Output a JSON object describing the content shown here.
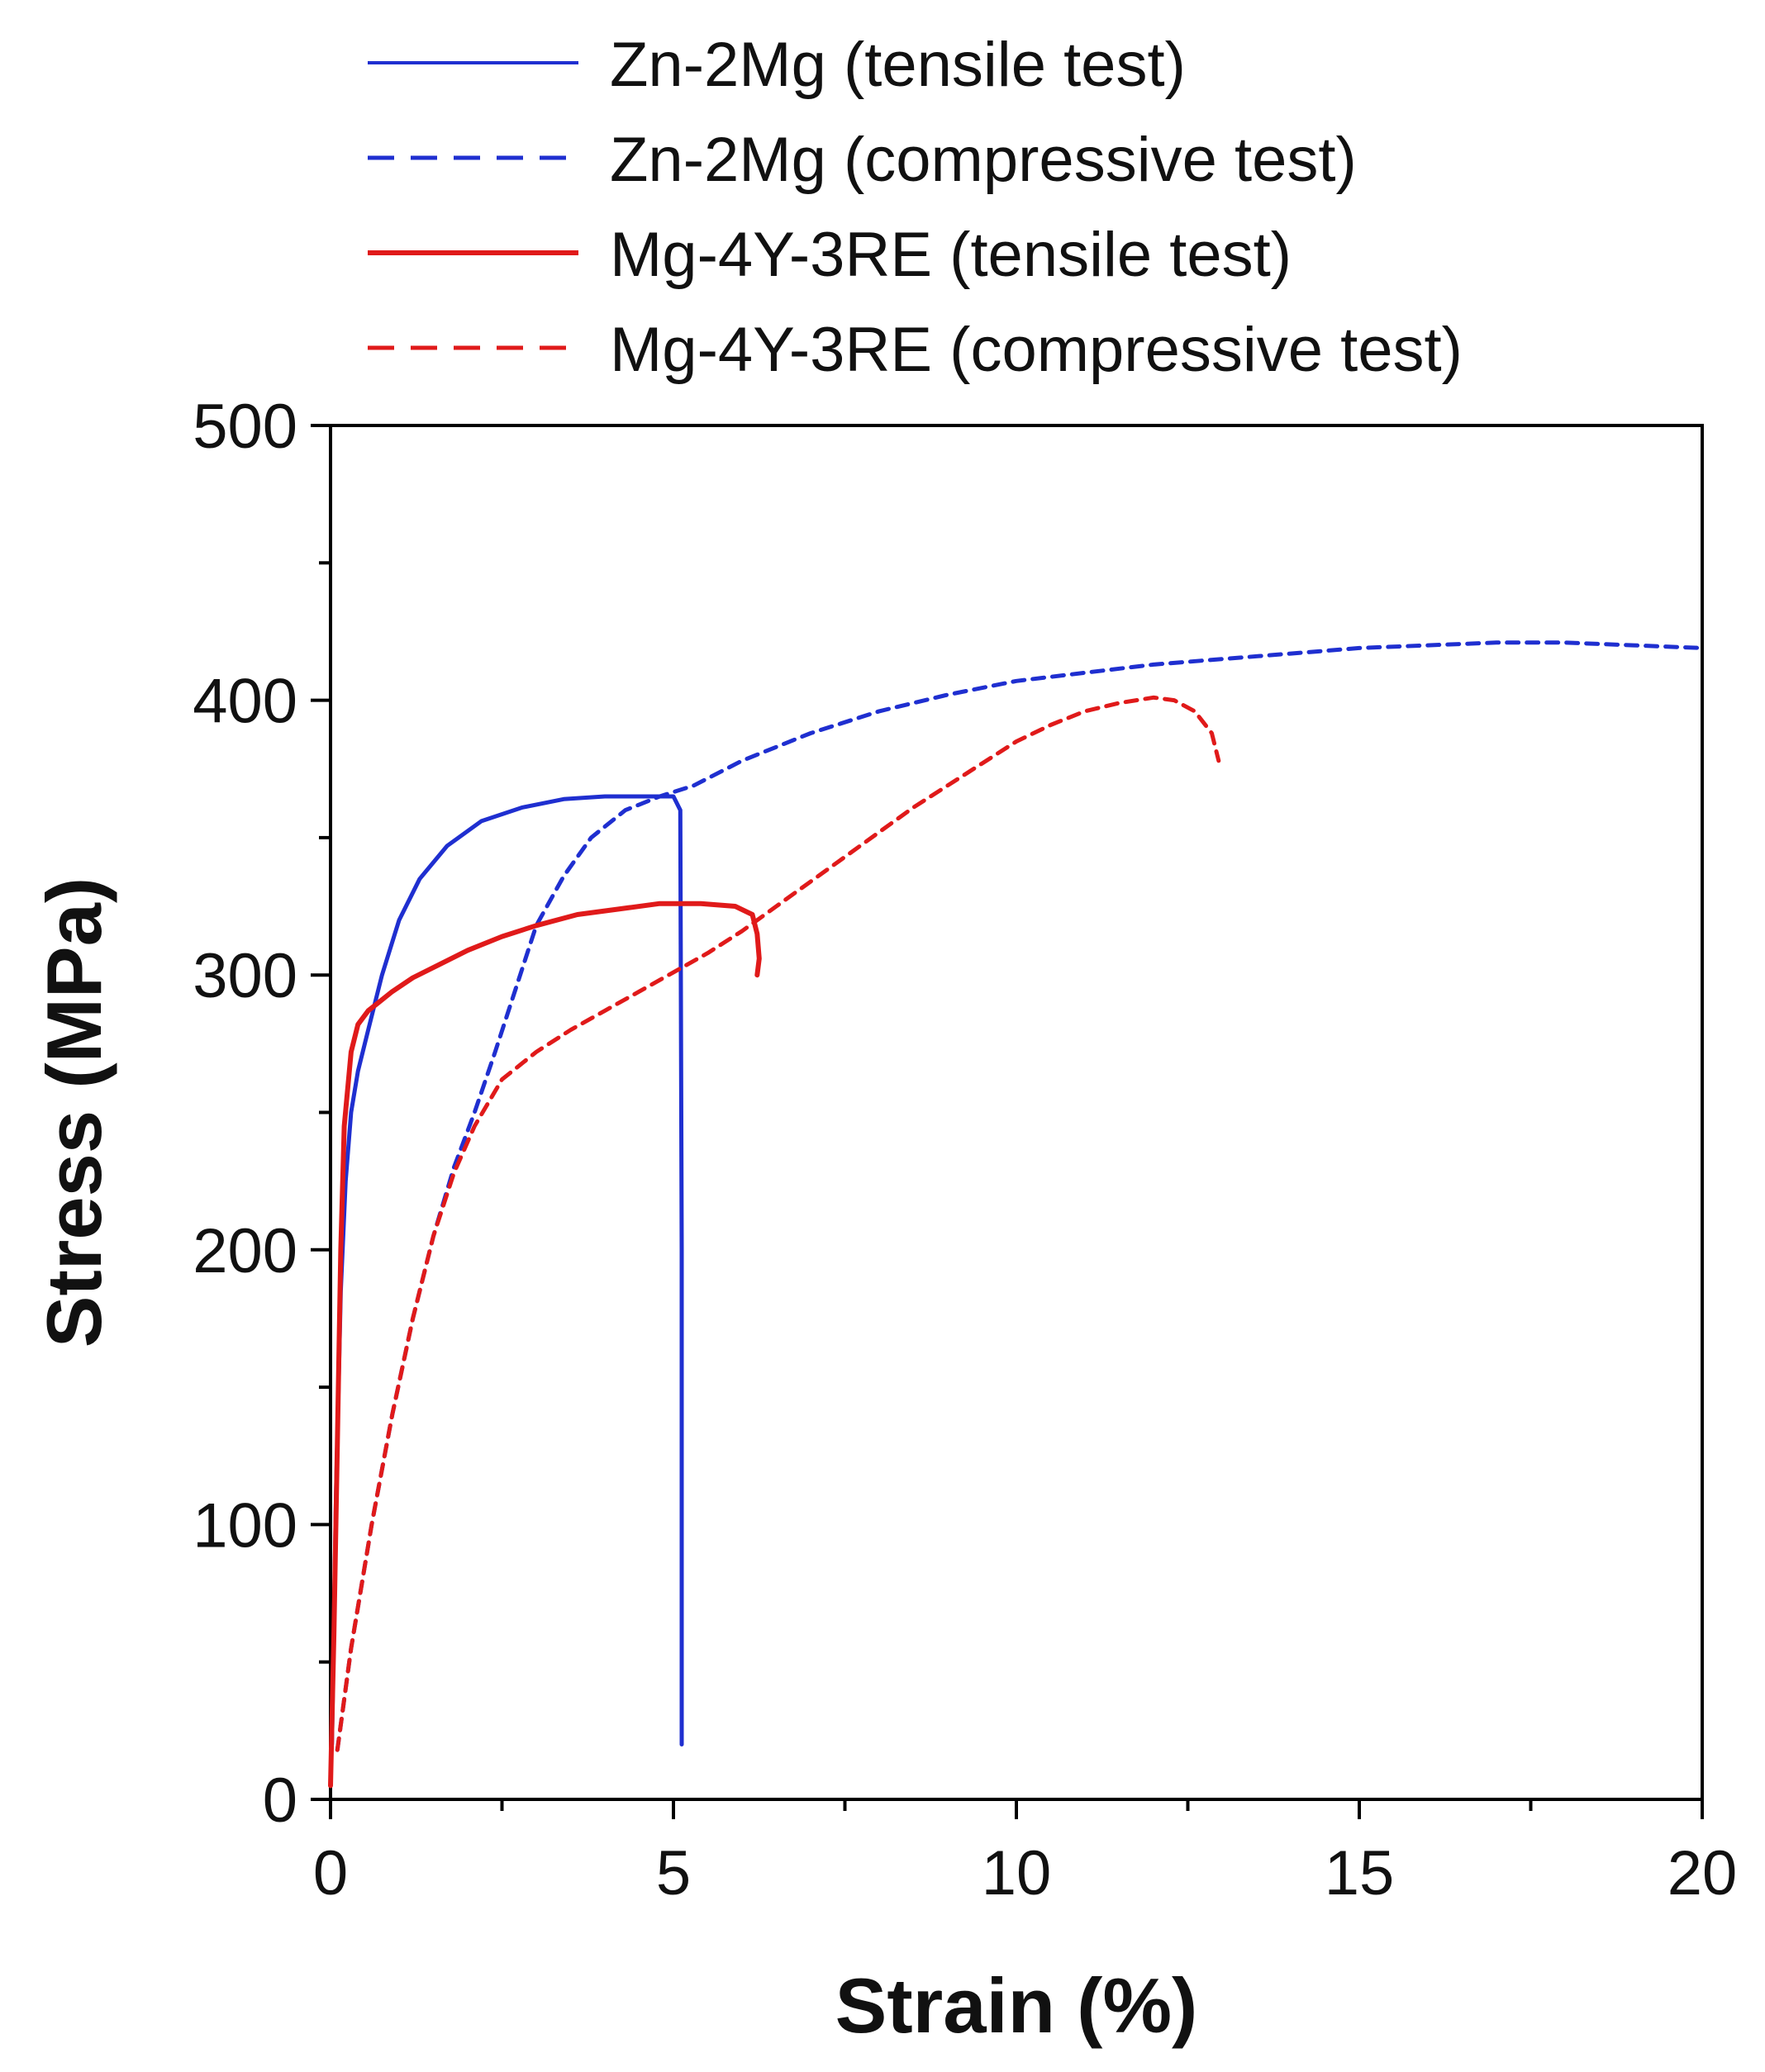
{
  "chart_data": {
    "type": "line",
    "title": "",
    "xlabel": "Strain (%)",
    "ylabel": "Stress (MPa)",
    "xlim": [
      0,
      20
    ],
    "ylim": [
      0,
      500
    ],
    "xticks": [
      0,
      5,
      10,
      15,
      20
    ],
    "xtick_labels": [
      "0",
      "5",
      "10",
      "15",
      "20"
    ],
    "yticks": [
      0,
      100,
      200,
      300,
      400,
      500
    ],
    "ytick_labels": [
      "0",
      "100",
      "200",
      "300",
      "400",
      "500"
    ],
    "x_minor_step": 2.5,
    "y_minor_step": 50,
    "grid": false,
    "legend_position": "top",
    "series": [
      {
        "name": "Zn-2Mg (tensile test)",
        "color": "#1f2fd0",
        "dash": "solid",
        "x": [
          0.02,
          0.08,
          0.15,
          0.22,
          0.3,
          0.4,
          0.55,
          0.75,
          1.0,
          1.3,
          1.7,
          2.2,
          2.8,
          3.4,
          4.0,
          4.6,
          5.0,
          5.1,
          5.12,
          5.12
        ],
        "y": [
          20,
          110,
          185,
          225,
          250,
          265,
          280,
          300,
          320,
          335,
          347,
          356,
          361,
          364,
          365,
          365,
          365,
          360,
          200,
          20
        ]
      },
      {
        "name": "Zn-2Mg (compressive test)",
        "color": "#1f2fd0",
        "dash": "dashed",
        "x": [
          0.1,
          0.3,
          0.6,
          0.9,
          1.2,
          1.5,
          1.8,
          2.1,
          2.4,
          2.7,
          3.0,
          3.4,
          3.8,
          4.3,
          4.8,
          5.3,
          6.0,
          7.0,
          8.0,
          9.0,
          10.0,
          11.0,
          12.0,
          13.0,
          14.0,
          15.0,
          16.0,
          17.0,
          18.0,
          19.0,
          20.0
        ],
        "y": [
          18,
          55,
          100,
          140,
          175,
          205,
          230,
          250,
          272,
          295,
          318,
          336,
          350,
          360,
          365,
          369,
          378,
          388,
          396,
          402,
          407,
          410,
          413,
          415,
          417,
          419,
          420,
          421,
          421,
          420,
          419
        ]
      },
      {
        "name": "Mg-4Y-3RE (tensile test)",
        "color": "#e01a1a",
        "dash": "solid",
        "x": [
          0.0,
          0.05,
          0.1,
          0.15,
          0.2,
          0.3,
          0.4,
          0.55,
          0.7,
          0.9,
          1.2,
          1.6,
          2.0,
          2.5,
          3.0,
          3.6,
          4.2,
          4.8,
          5.4,
          5.9,
          6.15,
          6.22,
          6.25,
          6.22
        ],
        "y": [
          5,
          60,
          130,
          200,
          245,
          272,
          282,
          287,
          290,
          294,
          299,
          304,
          309,
          314,
          318,
          322,
          324,
          326,
          326,
          325,
          322,
          315,
          306,
          300
        ]
      },
      {
        "name": "Mg-4Y-3RE (compressive test)",
        "color": "#e01a1a",
        "dash": "dashed",
        "x": [
          0.1,
          0.3,
          0.6,
          0.9,
          1.2,
          1.5,
          1.8,
          2.1,
          2.5,
          3.0,
          3.5,
          4.0,
          4.5,
          5.0,
          5.5,
          6.0,
          6.5,
          7.0,
          7.5,
          8.0,
          8.5,
          9.0,
          9.5,
          10.0,
          10.5,
          11.0,
          11.5,
          12.0,
          12.3,
          12.6,
          12.85,
          12.95
        ],
        "y": [
          18,
          55,
          100,
          140,
          175,
          205,
          228,
          245,
          262,
          272,
          280,
          287,
          294,
          301,
          308,
          316,
          325,
          334,
          343,
          352,
          361,
          369,
          377,
          385,
          391,
          396,
          399,
          401,
          400,
          396,
          388,
          378
        ]
      }
    ]
  }
}
